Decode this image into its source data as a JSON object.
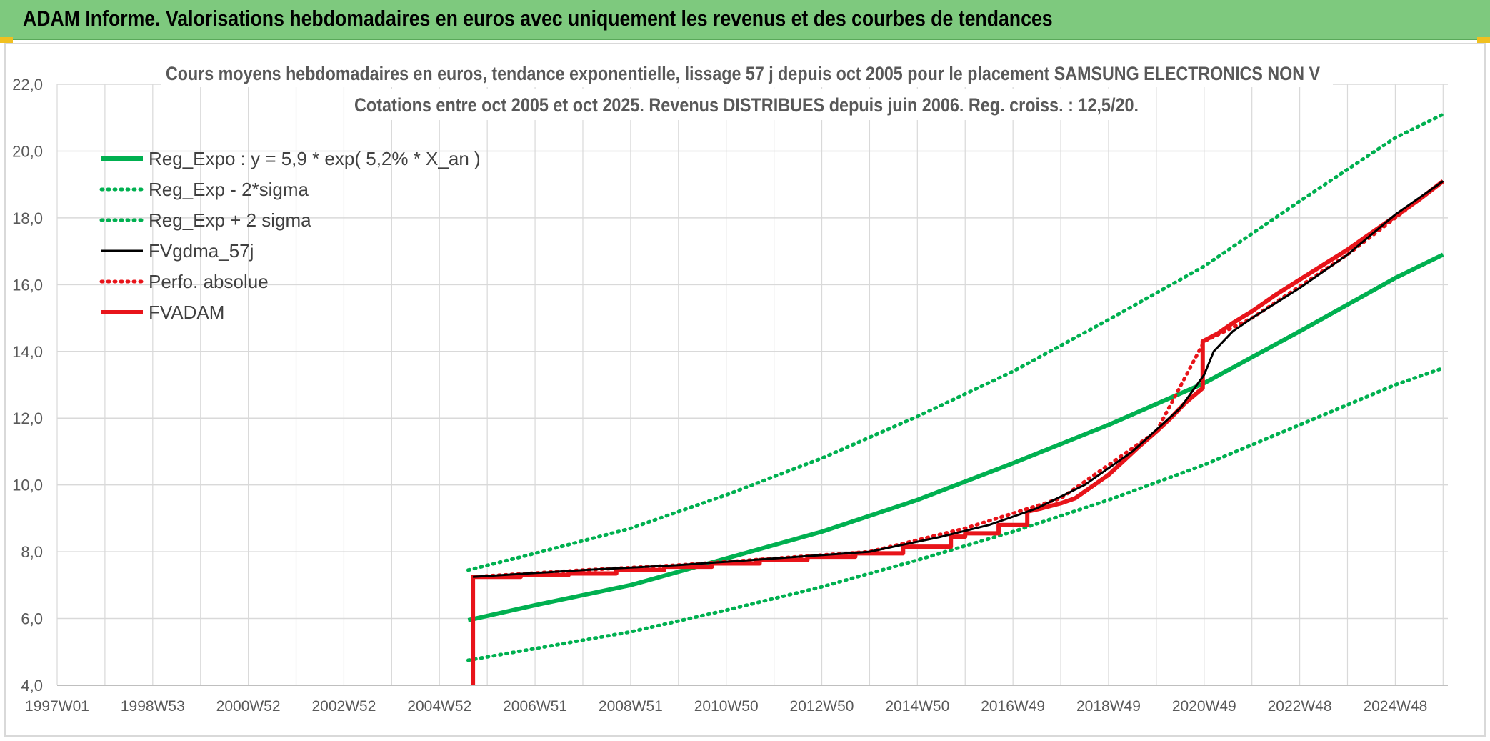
{
  "header": {
    "title": "ADAM Informe. Valorisations hebdomadaires en euros avec uniquement les revenus et des courbes de tendances"
  },
  "colors": {
    "banner": "#7ec97e",
    "green": "#00b050",
    "black": "#000000",
    "red": "#e8141a",
    "grid": "#d9d9d9"
  },
  "chart_data": {
    "type": "line",
    "title": "Cours moyens hebdomadaires en euros, tendance exponentielle, lissage 57 j depuis oct 2005 pour le placement SAMSUNG ELECTRONICS NON V",
    "subtitle": "Cotations entre oct 2005 et oct 2025. Revenus DISTRIBUES depuis juin 2006. Reg. croiss. : 12,5/20.",
    "xlim": [
      1997.0,
      2026.1
    ],
    "ylim": [
      4.0,
      22.0
    ],
    "x_ticks": [
      {
        "x": 1997.0,
        "label": "1997W01"
      },
      {
        "x": 1999.0,
        "label": "1998W53"
      },
      {
        "x": 2001.0,
        "label": "2000W52"
      },
      {
        "x": 2003.0,
        "label": "2002W52"
      },
      {
        "x": 2005.0,
        "label": "2004W52"
      },
      {
        "x": 2007.0,
        "label": "2006W51"
      },
      {
        "x": 2009.0,
        "label": "2008W51"
      },
      {
        "x": 2011.0,
        "label": "2010W50"
      },
      {
        "x": 2013.0,
        "label": "2012W50"
      },
      {
        "x": 2015.0,
        "label": "2014W50"
      },
      {
        "x": 2017.0,
        "label": "2016W49"
      },
      {
        "x": 2019.0,
        "label": "2018W49"
      },
      {
        "x": 2021.0,
        "label": "2020W49"
      },
      {
        "x": 2023.0,
        "label": "2022W48"
      },
      {
        "x": 2025.0,
        "label": "2024W48"
      }
    ],
    "y_ticks": [
      {
        "y": 4.0,
        "label": "4,0"
      },
      {
        "y": 6.0,
        "label": "6,0"
      },
      {
        "y": 8.0,
        "label": "8,0"
      },
      {
        "y": 10.0,
        "label": "10,0"
      },
      {
        "y": 12.0,
        "label": "12,0"
      },
      {
        "y": 14.0,
        "label": "14,0"
      },
      {
        "y": 16.0,
        "label": "16,0"
      },
      {
        "y": 18.0,
        "label": "18,0"
      },
      {
        "y": 20.0,
        "label": "20,0"
      },
      {
        "y": 22.0,
        "label": "22,0"
      }
    ],
    "grid": true,
    "legend_position": "top-left",
    "series": [
      {
        "name": "Reg_Expo : y = 5,9 * exp( 5,2% *  X_an )",
        "color": "#00b050",
        "style": "solid",
        "points": [
          [
            2005.6,
            5.95
          ],
          [
            2007,
            6.4
          ],
          [
            2009,
            7.0
          ],
          [
            2011,
            7.8
          ],
          [
            2013,
            8.6
          ],
          [
            2015,
            9.55
          ],
          [
            2017,
            10.65
          ],
          [
            2019,
            11.8
          ],
          [
            2021,
            13.05
          ],
          [
            2023,
            14.6
          ],
          [
            2025,
            16.2
          ],
          [
            2026.0,
            16.9
          ]
        ]
      },
      {
        "name": "Reg_Exp - 2*sigma",
        "color": "#00b050",
        "style": "dotted",
        "points": [
          [
            2005.6,
            4.75
          ],
          [
            2007,
            5.1
          ],
          [
            2009,
            5.6
          ],
          [
            2011,
            6.25
          ],
          [
            2013,
            6.95
          ],
          [
            2015,
            7.75
          ],
          [
            2017,
            8.6
          ],
          [
            2019,
            9.55
          ],
          [
            2021,
            10.6
          ],
          [
            2023,
            11.8
          ],
          [
            2025,
            13.0
          ],
          [
            2026.0,
            13.5
          ]
        ]
      },
      {
        "name": "Reg_Exp + 2 sigma",
        "color": "#00b050",
        "style": "dotted",
        "points": [
          [
            2005.6,
            7.45
          ],
          [
            2007,
            7.95
          ],
          [
            2009,
            8.7
          ],
          [
            2011,
            9.7
          ],
          [
            2013,
            10.8
          ],
          [
            2015,
            12.05
          ],
          [
            2017,
            13.4
          ],
          [
            2019,
            14.95
          ],
          [
            2021,
            16.55
          ],
          [
            2023,
            18.5
          ],
          [
            2025,
            20.4
          ],
          [
            2026.0,
            21.1
          ]
        ]
      },
      {
        "name": "FVgdma_57j",
        "color": "#000000",
        "style": "solid",
        "points": [
          [
            2005.7,
            7.25
          ],
          [
            2008,
            7.45
          ],
          [
            2010,
            7.6
          ],
          [
            2012,
            7.8
          ],
          [
            2014,
            8.0
          ],
          [
            2015.5,
            8.45
          ],
          [
            2016.5,
            8.8
          ],
          [
            2017.5,
            9.3
          ],
          [
            2018.5,
            10.0
          ],
          [
            2019.5,
            11.0
          ],
          [
            2020.5,
            12.3
          ],
          [
            2021.0,
            13.3
          ],
          [
            2021.2,
            14.0
          ],
          [
            2021.6,
            14.6
          ],
          [
            2022.0,
            15.0
          ],
          [
            2023.0,
            15.9
          ],
          [
            2024.0,
            16.9
          ],
          [
            2025.0,
            18.1
          ],
          [
            2026.0,
            19.1
          ]
        ]
      },
      {
        "name": "Perfo. absolue",
        "color": "#e8141a",
        "style": "dotted",
        "points": [
          [
            2005.7,
            7.25
          ],
          [
            2008,
            7.45
          ],
          [
            2010,
            7.6
          ],
          [
            2012,
            7.8
          ],
          [
            2014,
            8.0
          ],
          [
            2016,
            8.7
          ],
          [
            2018,
            9.6
          ],
          [
            2020,
            11.6
          ],
          [
            2021.0,
            14.3
          ],
          [
            2022,
            15.0
          ],
          [
            2024,
            16.9
          ],
          [
            2026.0,
            19.1
          ]
        ]
      },
      {
        "name": "FVADAM",
        "color": "#e8141a",
        "style": "solid",
        "points": [
          [
            2005.7,
            4.0
          ],
          [
            2005.7,
            7.25
          ],
          [
            2006.7,
            7.25
          ],
          [
            2006.7,
            7.3
          ],
          [
            2007.7,
            7.3
          ],
          [
            2007.7,
            7.35
          ],
          [
            2008.7,
            7.35
          ],
          [
            2008.7,
            7.45
          ],
          [
            2009.7,
            7.45
          ],
          [
            2009.7,
            7.55
          ],
          [
            2010.7,
            7.55
          ],
          [
            2010.7,
            7.65
          ],
          [
            2011.7,
            7.65
          ],
          [
            2011.7,
            7.75
          ],
          [
            2012.7,
            7.75
          ],
          [
            2012.7,
            7.85
          ],
          [
            2013.7,
            7.85
          ],
          [
            2013.7,
            7.95
          ],
          [
            2014.7,
            7.95
          ],
          [
            2014.7,
            8.15
          ],
          [
            2015.7,
            8.15
          ],
          [
            2015.7,
            8.45
          ],
          [
            2016.0,
            8.45
          ],
          [
            2016.0,
            8.55
          ],
          [
            2016.7,
            8.55
          ],
          [
            2016.7,
            8.8
          ],
          [
            2017.3,
            8.8
          ],
          [
            2017.3,
            9.2
          ],
          [
            2017.6,
            9.3
          ],
          [
            2018.0,
            9.45
          ],
          [
            2018.3,
            9.6
          ],
          [
            2018.6,
            9.9
          ],
          [
            2019.0,
            10.3
          ],
          [
            2019.3,
            10.7
          ],
          [
            2019.6,
            11.1
          ],
          [
            2020.0,
            11.6
          ],
          [
            2020.3,
            12.0
          ],
          [
            2020.6,
            12.45
          ],
          [
            2020.97,
            12.9
          ],
          [
            2020.97,
            14.3
          ],
          [
            2021.3,
            14.55
          ],
          [
            2021.6,
            14.85
          ],
          [
            2022.0,
            15.2
          ],
          [
            2022.5,
            15.7
          ],
          [
            2023.0,
            16.15
          ],
          [
            2023.5,
            16.6
          ],
          [
            2024.0,
            17.05
          ],
          [
            2024.5,
            17.55
          ],
          [
            2025.0,
            18.05
          ],
          [
            2025.5,
            18.55
          ],
          [
            2026.0,
            19.1
          ]
        ]
      }
    ]
  }
}
